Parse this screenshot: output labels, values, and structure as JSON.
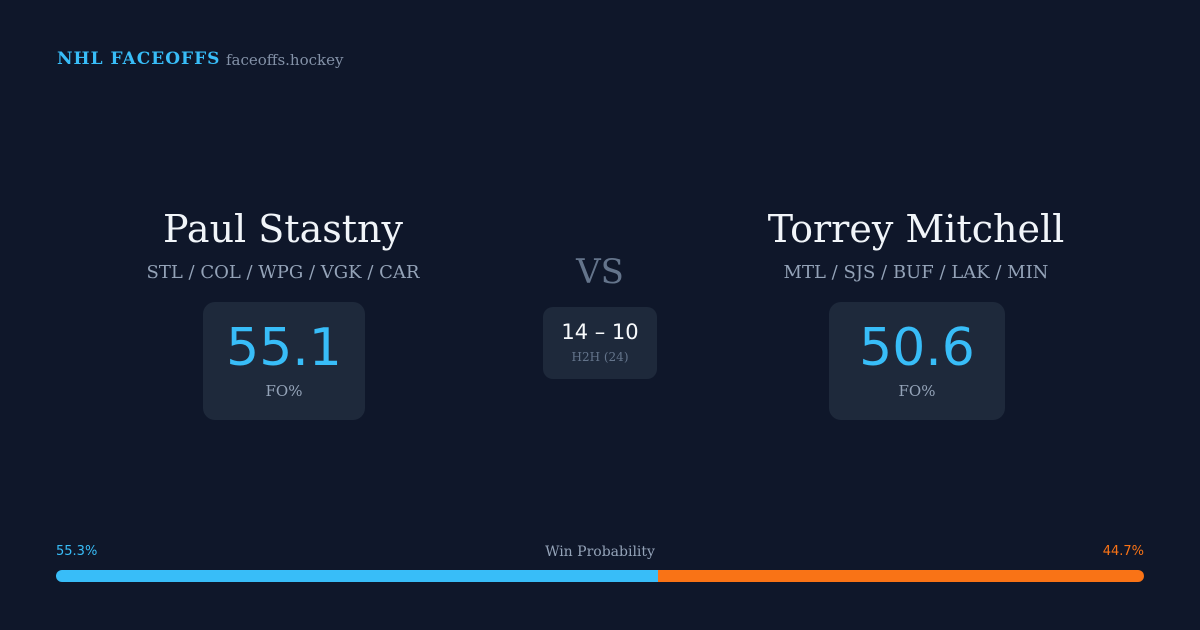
{
  "header": {
    "brand": "NHL FACEOFFS",
    "site": "faceoffs.hockey"
  },
  "players": [
    {
      "name": "Paul Stastny",
      "teams": "STL / COL / WPG / VGK / CAR",
      "fo_pct": 55.1,
      "fo_label": "FO%"
    },
    {
      "name": "Torrey Mitchell",
      "teams": "MTL / SJS / BUF / LAK / MIN",
      "fo_pct": 50.6,
      "fo_label": "FO%"
    }
  ],
  "vs": "VS",
  "h2h": {
    "score": "14 – 10",
    "label": "H2H (24)"
  },
  "win_probability": {
    "label": "Win Probability",
    "left": {
      "value": 55.3,
      "label": "55.3%",
      "color": "#38bdf8"
    },
    "right": {
      "value": 44.7,
      "label": "44.7%",
      "color": "#f97316"
    }
  }
}
